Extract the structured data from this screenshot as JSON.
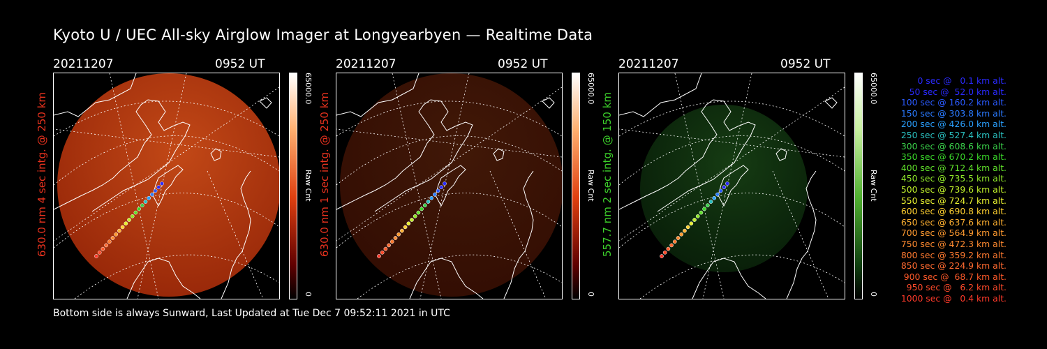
{
  "title": "Kyoto U / UEC All-sky Airglow Imager at Longyearbyen — Realtime Data",
  "panels": [
    {
      "date": "20211207",
      "time": "0952 UT",
      "label": "630.0 nm 4 sec intg. @ 250 km",
      "label_color": "#e8321e",
      "colorbar_max": "65000.0",
      "colorbar_min": "0",
      "colorbar_unit": "Raw Cnt",
      "brightness": 0.9
    },
    {
      "date": "20211207",
      "time": "0952 UT",
      "label": "630.0 nm 1 sec intg. @ 250 km",
      "label_color": "#e8321e",
      "colorbar_max": "65000.0",
      "colorbar_min": "0",
      "colorbar_unit": "Raw Cnt",
      "brightness": 0.3
    },
    {
      "date": "20211207",
      "time": "0952 UT",
      "label": "557.7 nm 2 sec intg. @ 150 km",
      "label_color": "#3ccf2a",
      "colorbar_max": "65000.0",
      "colorbar_min": "0",
      "colorbar_unit": "Raw Cnt",
      "brightness": 0.35
    }
  ],
  "footer": "Bottom side is always Sunward, Last Updated at Tue Dec  7 09:52:11 2021 in UTC",
  "legend": [
    {
      "text": "0 sec @   0.1 km alt.",
      "color": "#2a2aff"
    },
    {
      "text": "50 sec @  52.0 km alt.",
      "color": "#2a2aff"
    },
    {
      "text": "100 sec @ 160.2 km alt.",
      "color": "#2a5aff"
    },
    {
      "text": "150 sec @ 303.8 km alt.",
      "color": "#2a7aff"
    },
    {
      "text": "200 sec @ 426.0 km alt.",
      "color": "#2aa0ff"
    },
    {
      "text": "250 sec @ 527.4 km alt.",
      "color": "#2ac0c0"
    },
    {
      "text": "300 sec @ 608.6 km alt.",
      "color": "#3ad04a"
    },
    {
      "text": "350 sec @ 670.2 km alt.",
      "color": "#3ad82a"
    },
    {
      "text": "400 sec @ 712.4 km alt.",
      "color": "#60e02a"
    },
    {
      "text": "450 sec @ 735.5 km alt.",
      "color": "#90e82a"
    },
    {
      "text": "500 sec @ 739.6 km alt.",
      "color": "#c0f02a"
    },
    {
      "text": "550 sec @ 724.7 km alt.",
      "color": "#e8f030"
    },
    {
      "text": "600 sec @ 690.8 km alt.",
      "color": "#ffd030"
    },
    {
      "text": "650 sec @ 637.6 km alt.",
      "color": "#ffb030"
    },
    {
      "text": "700 sec @ 564.9 km alt.",
      "color": "#ff9a30"
    },
    {
      "text": "750 sec @ 472.3 km alt.",
      "color": "#ff8a30"
    },
    {
      "text": "800 sec @ 359.2 km alt.",
      "color": "#ff7a30"
    },
    {
      "text": "850 sec @ 224.9 km alt.",
      "color": "#ff6a30"
    },
    {
      "text": "900 sec @  68.7 km alt.",
      "color": "#ff5a2a"
    },
    {
      "text": "950 sec @   6.2 km alt.",
      "color": "#ff4a2a"
    },
    {
      "text": "1000 sec @   0.4 km alt.",
      "color": "#ff3a2a"
    }
  ]
}
